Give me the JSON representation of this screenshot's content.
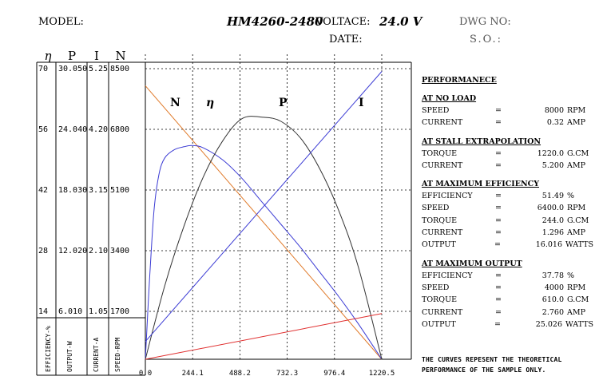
{
  "header": {
    "model_label": "MODEL:",
    "model_value": "HM4260-2480",
    "voltage_label": "VOLTACE:",
    "voltage_value": "24.0 V",
    "dwg_label": "DWG NO:",
    "date_label": "DATE:",
    "so_label": "S.O.:"
  },
  "chart_data": {
    "type": "line",
    "x_axis": {
      "ticks": [
        "0.0",
        "244.1",
        "488.2",
        "732.3",
        "976.4",
        "1220.5"
      ],
      "range": [
        0,
        1220.5
      ]
    },
    "left_axes": [
      {
        "symbol": "η",
        "label": "EFFICIENCY-%",
        "ticks": [
          "70",
          "56",
          "42",
          "28",
          "14"
        ]
      },
      {
        "symbol": "P",
        "label": "OUTPUT-W",
        "ticks": [
          "30.050",
          "24.040",
          "18.030",
          "12.020",
          "6.010"
        ]
      },
      {
        "symbol": "I",
        "label": "CURRENT-A",
        "ticks": [
          "5.25",
          "4.20",
          "3.15",
          "2.10",
          "1.05"
        ]
      },
      {
        "symbol": "N",
        "label": "SPEED-RPM",
        "ticks": [
          "8500",
          "6800",
          "5100",
          "3400",
          "1700"
        ]
      }
    ],
    "y_ranges": {
      "efficiency": [
        0,
        70
      ],
      "output": [
        0,
        30.05
      ],
      "current": [
        0,
        5.25
      ],
      "speed": [
        0,
        8500
      ]
    },
    "series": [
      {
        "name": "N",
        "axis": "speed",
        "color": "#e07a2a",
        "points": [
          [
            0,
            8000
          ],
          [
            1220.5,
            0
          ]
        ]
      },
      {
        "name": "η",
        "axis": "efficiency",
        "color": "#3b3bd4",
        "points": [
          [
            0,
            0
          ],
          [
            10,
            9
          ],
          [
            25,
            22
          ],
          [
            45,
            36
          ],
          [
            70,
            44.5
          ],
          [
            100,
            48.5
          ],
          [
            150,
            50.5
          ],
          [
            200,
            51.2
          ],
          [
            244,
            51.49
          ],
          [
            300,
            50.9
          ],
          [
            400,
            48
          ],
          [
            500,
            43.5
          ],
          [
            600,
            38
          ],
          [
            700,
            32.5
          ],
          [
            800,
            27
          ],
          [
            900,
            21
          ],
          [
            1000,
            15
          ],
          [
            1100,
            8.5
          ],
          [
            1220.5,
            0
          ]
        ]
      },
      {
        "name": "P",
        "axis": "output",
        "color": "#333333",
        "points": [
          [
            0,
            0
          ],
          [
            100,
            7.6
          ],
          [
            200,
            13.8
          ],
          [
            300,
            18.9
          ],
          [
            400,
            22.6
          ],
          [
            500,
            24.9
          ],
          [
            610,
            25.026
          ],
          [
            700,
            24.6
          ],
          [
            800,
            22.9
          ],
          [
            900,
            19.7
          ],
          [
            1000,
            15.3
          ],
          [
            1100,
            9.5
          ],
          [
            1220.5,
            0
          ]
        ]
      },
      {
        "name": "I",
        "axis": "current",
        "color": "#3b3bd4",
        "points": [
          [
            0,
            0.32
          ],
          [
            1220.5,
            5.2
          ]
        ]
      },
      {
        "name": "",
        "axis": "efficiency",
        "color": "#e03030",
        "points": [
          [
            0,
            0
          ],
          [
            1220.5,
            11
          ]
        ]
      }
    ],
    "curve_labels": [
      "N",
      "η",
      "P",
      "I"
    ]
  },
  "performance": {
    "title": "PERFORMANECE",
    "sections": [
      {
        "title": "AT NO LOAD",
        "rows": [
          {
            "label": "SPEED",
            "eq": "=",
            "value": "8000",
            "unit": "RPM"
          },
          {
            "label": "CURRENT",
            "eq": "=",
            "value": "0.32",
            "unit": "AMP"
          }
        ]
      },
      {
        "title": "AT STALL EXTRAPOLATION",
        "rows": [
          {
            "label": "TORQUE",
            "eq": "=",
            "value": "1220.0",
            "unit": "G.CM"
          },
          {
            "label": "CURRENT",
            "eq": "=",
            "value": "5.200",
            "unit": "AMP"
          }
        ]
      },
      {
        "title": "AT MAXIMUM EFFICIENCY",
        "rows": [
          {
            "label": "EFFICIENCY",
            "eq": "=",
            "value": "51.49",
            "unit": "%"
          },
          {
            "label": "SPEED",
            "eq": "=",
            "value": "6400.0",
            "unit": "RPM"
          },
          {
            "label": "TORQUE",
            "eq": "=",
            "value": "244.0",
            "unit": "G.CM"
          },
          {
            "label": "CURRENT",
            "eq": "=",
            "value": "1.296",
            "unit": "AMP"
          },
          {
            "label": "OUTPUT",
            "eq": "=",
            "value": "16.016",
            "unit": "WATTS"
          }
        ]
      },
      {
        "title": "AT MAXIMUM OUTPUT",
        "rows": [
          {
            "label": "EFFICIENCY",
            "eq": "=",
            "value": "37.78",
            "unit": "%"
          },
          {
            "label": "SPEED",
            "eq": "=",
            "value": "4000",
            "unit": "RPM"
          },
          {
            "label": "TORQUE",
            "eq": "=",
            "value": "610.0",
            "unit": "G.CM"
          },
          {
            "label": "CURRENT",
            "eq": "=",
            "value": "2.760",
            "unit": "AMP"
          },
          {
            "label": "OUTPUT",
            "eq": "=",
            "value": "25.026",
            "unit": "WATTS"
          }
        ]
      }
    ]
  },
  "note": {
    "line1": "THE CURVES REPESENT THE THEORETICAL",
    "line2": "PERFORMANCE OF THE SAMPLE ONLY."
  }
}
